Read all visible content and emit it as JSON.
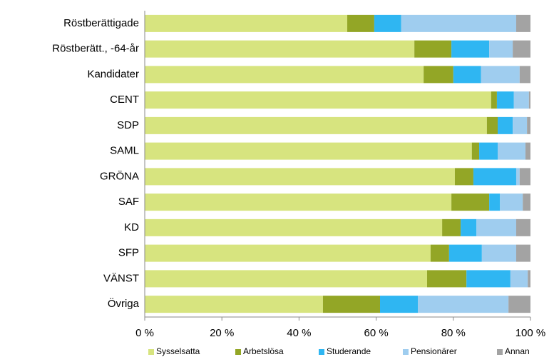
{
  "chart_data": {
    "type": "stacked-barh",
    "categories": [
      "Röstberättigade",
      "Röstberätt., -64-år",
      "Kandidater",
      "CENT",
      "SDP",
      "SAML",
      "GRÖNA",
      "SAF",
      "KD",
      "SFP",
      "VÄNST",
      "Övriga"
    ],
    "series": [
      {
        "name": "Sysselsatta",
        "color": "#d7e47f",
        "values": [
          52.5,
          69.9,
          72.3,
          89.8,
          88.7,
          84.8,
          80.4,
          79.5,
          77.1,
          74.1,
          73.2,
          46.2
        ]
      },
      {
        "name": "Arbetslösa",
        "color": "#93a626",
        "values": [
          7.0,
          9.6,
          7.7,
          1.5,
          2.8,
          1.9,
          4.8,
          9.8,
          4.8,
          4.8,
          10.2,
          14.8
        ]
      },
      {
        "name": "Studerande",
        "color": "#2fb6f2",
        "values": [
          7.0,
          9.8,
          7.2,
          4.4,
          3.9,
          4.8,
          11.1,
          2.8,
          4.1,
          8.5,
          11.4,
          9.8
        ]
      },
      {
        "name": "Pensionärer",
        "color": "#9fcdef",
        "values": [
          29.8,
          6.1,
          10.0,
          3.9,
          3.7,
          7.2,
          0.9,
          5.9,
          10.3,
          8.9,
          4.5,
          23.5
        ]
      },
      {
        "name": "Annan",
        "color": "#a3a3a3",
        "values": [
          3.7,
          4.6,
          2.8,
          0.4,
          0.9,
          1.3,
          2.8,
          2.0,
          3.7,
          3.7,
          0.7,
          5.7
        ]
      }
    ],
    "xlim": [
      0,
      100
    ],
    "xticks": [
      {
        "value": 0,
        "label": "0 %"
      },
      {
        "value": 20,
        "label": "20 %"
      },
      {
        "value": 40,
        "label": "40 %"
      },
      {
        "value": 60,
        "label": "60 %"
      },
      {
        "value": 80,
        "label": "80 %"
      },
      {
        "value": 100,
        "label": "100 %"
      }
    ],
    "legend": "bottom"
  }
}
